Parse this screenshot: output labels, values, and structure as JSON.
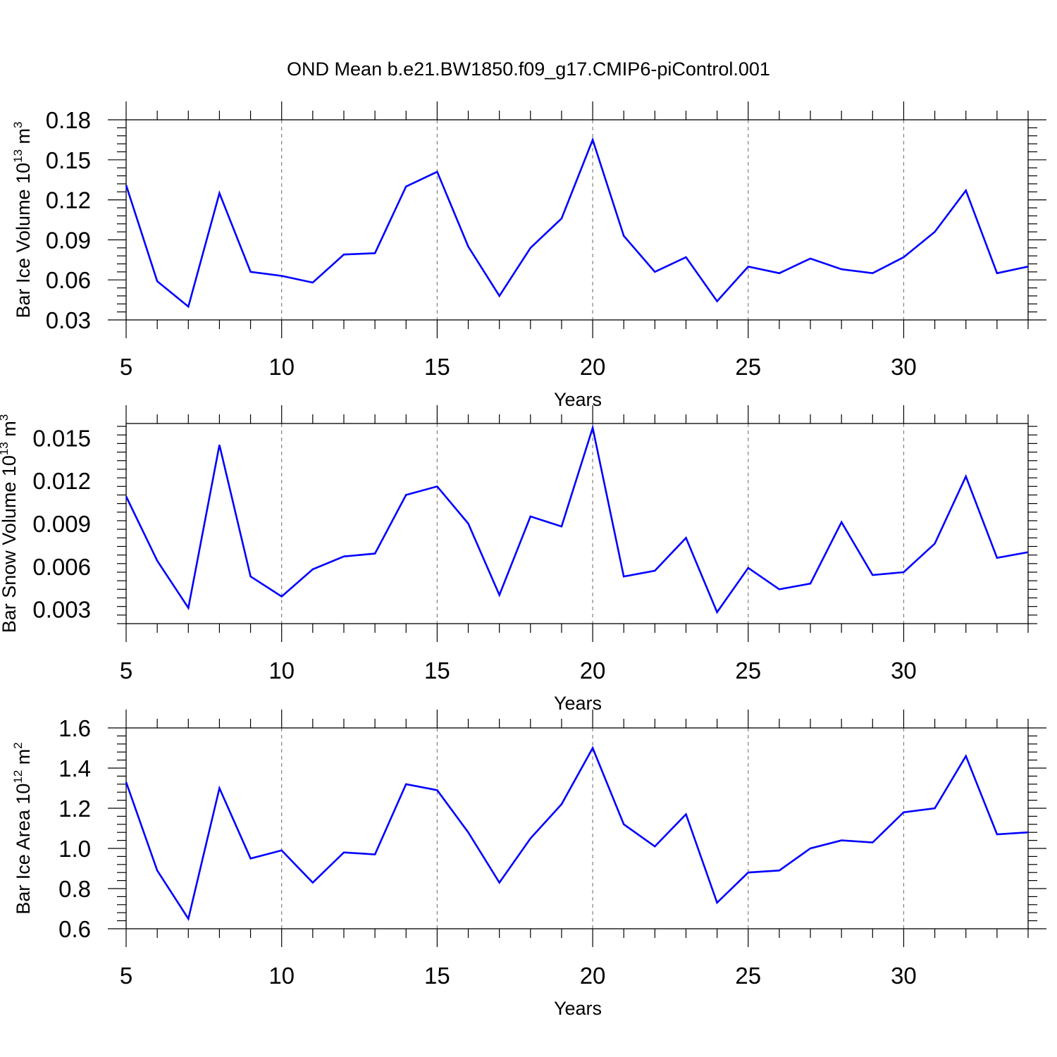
{
  "title": "OND Mean b.e21.BW1850.f09_g17.CMIP6-piControl.001",
  "chart_data": [
    {
      "type": "line",
      "xlabel": "Years",
      "ylabel": {
        "base": "Bar Ice Volume 10",
        "exp": "13",
        "unit": " m",
        "unit_exp": "3"
      },
      "xlim": [
        5,
        34
      ],
      "ylim": [
        0.03,
        0.18
      ],
      "xticks": [
        5,
        10,
        15,
        20,
        25,
        30
      ],
      "yticks": [
        0.03,
        0.06,
        0.09,
        0.12,
        0.15,
        0.18
      ],
      "ytick_labels": [
        "0.03",
        "0.06",
        "0.09",
        "0.12",
        "0.15",
        "0.18"
      ],
      "xtick_labels": [
        "5",
        "10",
        "15",
        "20",
        "25",
        "30"
      ],
      "grid": "vertical dashed at major x ticks",
      "line_color": "#0000ff",
      "x": [
        5,
        6,
        7,
        8,
        9,
        10,
        11,
        12,
        13,
        14,
        15,
        16,
        17,
        18,
        19,
        20,
        21,
        22,
        23,
        24,
        25,
        26,
        27,
        28,
        29,
        30,
        31,
        32,
        33,
        34
      ],
      "y": [
        0.131,
        0.059,
        0.04,
        0.125,
        0.066,
        0.063,
        0.058,
        0.079,
        0.08,
        0.13,
        0.141,
        0.085,
        0.048,
        0.084,
        0.106,
        0.165,
        0.093,
        0.066,
        0.077,
        0.044,
        0.07,
        0.065,
        0.076,
        0.068,
        0.065,
        0.077,
        0.096,
        0.127,
        0.065,
        0.07
      ]
    },
    {
      "type": "line",
      "xlabel": "Years",
      "ylabel": {
        "base": "Bar Snow Volume 10",
        "exp": "13",
        "unit": " m",
        "unit_exp": "3"
      },
      "xlim": [
        5,
        34
      ],
      "ylim": [
        0.002,
        0.016
      ],
      "xticks": [
        5,
        10,
        15,
        20,
        25,
        30
      ],
      "yticks": [
        0.003,
        0.006,
        0.009,
        0.012,
        0.015
      ],
      "ytick_labels": [
        "0.003",
        "0.006",
        "0.009",
        "0.012",
        "0.015"
      ],
      "xtick_labels": [
        "5",
        "10",
        "15",
        "20",
        "25",
        "30"
      ],
      "grid": "vertical dashed at major x ticks",
      "line_color": "#0000ff",
      "x": [
        5,
        6,
        7,
        8,
        9,
        10,
        11,
        12,
        13,
        14,
        15,
        16,
        17,
        18,
        19,
        20,
        21,
        22,
        23,
        24,
        25,
        26,
        27,
        28,
        29,
        30,
        31,
        32,
        33,
        34
      ],
      "y": [
        0.0109,
        0.0064,
        0.0031,
        0.0145,
        0.0053,
        0.0039,
        0.0058,
        0.0067,
        0.0069,
        0.011,
        0.0116,
        0.009,
        0.004,
        0.0095,
        0.0088,
        0.0157,
        0.0053,
        0.0057,
        0.008,
        0.0028,
        0.0059,
        0.0044,
        0.0048,
        0.0091,
        0.0054,
        0.0056,
        0.0076,
        0.0123,
        0.0066,
        0.007
      ]
    },
    {
      "type": "line",
      "xlabel": "Years",
      "ylabel": {
        "base": "Bar Ice Area 10",
        "exp": "12",
        "unit": " m",
        "unit_exp": "2"
      },
      "xlim": [
        5,
        34
      ],
      "ylim": [
        0.6,
        1.6
      ],
      "xticks": [
        5,
        10,
        15,
        20,
        25,
        30
      ],
      "yticks": [
        0.6,
        0.8,
        1.0,
        1.2,
        1.4,
        1.6
      ],
      "ytick_labels": [
        "0.6",
        "0.8",
        "1.0",
        "1.2",
        "1.4",
        "1.6"
      ],
      "xtick_labels": [
        "5",
        "10",
        "15",
        "20",
        "25",
        "30"
      ],
      "grid": "vertical dashed at major x ticks",
      "line_color": "#0000ff",
      "x": [
        5,
        6,
        7,
        8,
        9,
        10,
        11,
        12,
        13,
        14,
        15,
        16,
        17,
        18,
        19,
        20,
        21,
        22,
        23,
        24,
        25,
        26,
        27,
        28,
        29,
        30,
        31,
        32,
        33,
        34
      ],
      "y": [
        1.33,
        0.89,
        0.65,
        1.3,
        0.95,
        0.99,
        0.83,
        0.98,
        0.97,
        1.32,
        1.29,
        1.08,
        0.83,
        1.05,
        1.22,
        1.5,
        1.12,
        1.01,
        1.17,
        0.73,
        0.88,
        0.89,
        1.0,
        1.04,
        1.03,
        1.18,
        1.2,
        1.46,
        1.07,
        1.08
      ]
    }
  ]
}
